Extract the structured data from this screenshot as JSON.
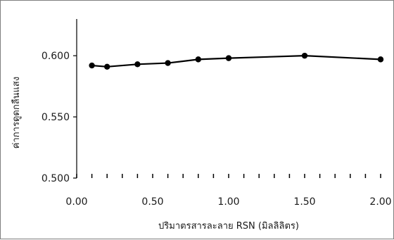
{
  "chart_data": {
    "type": "line",
    "title": "",
    "xlabel": "ปริมาตรสารละลาย RSN (มิลลิลิตร)",
    "ylabel": "ค่าการดูดกลืนแสง",
    "x": [
      0.1,
      0.2,
      0.4,
      0.6,
      0.8,
      1.0,
      1.5,
      2.0
    ],
    "series": [
      {
        "values": [
          0.592,
          0.591,
          0.593,
          0.594,
          0.597,
          0.598,
          0.6,
          0.597
        ]
      }
    ],
    "xlim": [
      0,
      2
    ],
    "ylim": [
      0.5,
      0.63
    ],
    "x_ticks": [
      0.0,
      0.5,
      1.0,
      1.5,
      2.0
    ],
    "x_tick_labels": [
      "0.00",
      "0.50",
      "1.00",
      "1.50",
      "2.00"
    ],
    "x_minor_step": 0.1,
    "y_ticks": [
      0.5,
      0.55,
      0.6
    ],
    "y_tick_labels": [
      "0.500",
      "0.550",
      "0.600"
    ],
    "grid": false,
    "legend": "none",
    "line_color": "#000000",
    "marker": "circle"
  }
}
